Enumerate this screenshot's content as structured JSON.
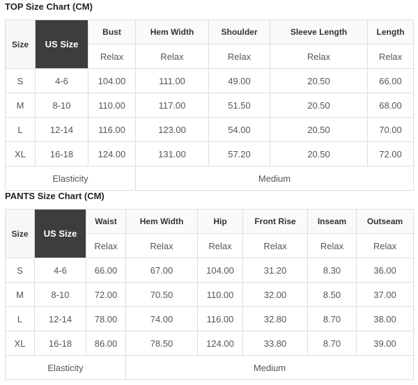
{
  "top": {
    "title": "TOP Size Chart (CM)",
    "headers": [
      "Size",
      "US Size",
      "Bust",
      "Hem Width",
      "Shoulder",
      "Sleeve Length",
      "Length"
    ],
    "sub": "Relax",
    "rows": [
      [
        "S",
        "4-6",
        "104.00",
        "111.00",
        "49.00",
        "20.50",
        "66.00"
      ],
      [
        "M",
        "8-10",
        "110.00",
        "117.00",
        "51.50",
        "20.50",
        "68.00"
      ],
      [
        "L",
        "12-14",
        "116.00",
        "123.00",
        "54.00",
        "20.50",
        "70.00"
      ],
      [
        "XL",
        "16-18",
        "124.00",
        "131.00",
        "57.20",
        "20.50",
        "72.00"
      ]
    ],
    "elasticity_label": "Elasticity",
    "elasticity_value": "Medium"
  },
  "pants": {
    "title": "PANTS Size Chart (CM)",
    "headers": [
      "Size",
      "US Size",
      "Waist",
      "Hem Width",
      "Hip",
      "Front Rise",
      "Inseam",
      "Outseam"
    ],
    "sub": "Relax",
    "rows": [
      [
        "S",
        "4-6",
        "66.00",
        "67.00",
        "104.00",
        "31.20",
        "8.30",
        "36.00"
      ],
      [
        "M",
        "8-10",
        "72.00",
        "70.50",
        "110.00",
        "32.00",
        "8.50",
        "37.00"
      ],
      [
        "L",
        "12-14",
        "78.00",
        "74.00",
        "116.00",
        "32.80",
        "8.70",
        "38.00"
      ],
      [
        "XL",
        "16-18",
        "86.00",
        "78.50",
        "124.00",
        "33.80",
        "8.70",
        "39.00"
      ]
    ],
    "elasticity_label": "Elasticity",
    "elasticity_value": "Medium"
  }
}
